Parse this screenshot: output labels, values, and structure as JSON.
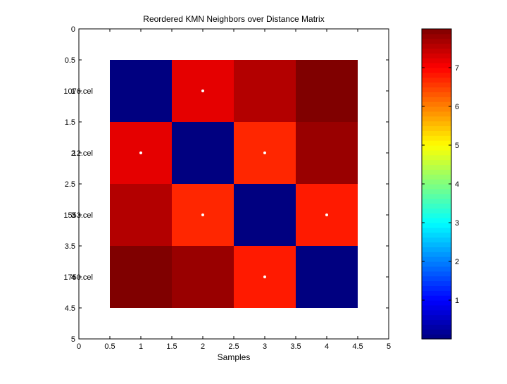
{
  "chart_data": {
    "type": "heatmap",
    "title": "Reordered KMN Neighbors over Distance Matrix",
    "xlabel": "Samples",
    "ylabel": "",
    "xlim": [
      0,
      5
    ],
    "ylim": [
      5,
      0
    ],
    "x_ticks": [
      "0",
      "0.5",
      "1",
      "1.5",
      "2",
      "2.5",
      "3",
      "3.5",
      "4",
      "4.5",
      "5"
    ],
    "y_ticks": [
      "0",
      "0.5",
      "1",
      "1.5",
      "2",
      "2.5",
      "3",
      "3.5",
      "4",
      "4.5",
      "5"
    ],
    "row_labels": [
      "1076.cel",
      "12.cel",
      "1553.cel",
      "1750.cel"
    ],
    "row_labels_overlap": [
      "1",
      "2",
      "3",
      "4"
    ],
    "colormap": "jet",
    "clim": [
      0,
      8
    ],
    "colorbar_ticks": [
      "1",
      "2",
      "3",
      "4",
      "5",
      "6",
      "7"
    ],
    "values": [
      [
        0.0,
        7.2,
        7.6,
        8.0
      ],
      [
        7.2,
        0.0,
        6.7,
        7.8
      ],
      [
        7.6,
        6.7,
        0.0,
        6.8
      ],
      [
        8.0,
        7.8,
        6.8,
        0.0
      ]
    ],
    "markers": [
      {
        "row": 1,
        "col": 2
      },
      {
        "row": 2,
        "col": 1
      },
      {
        "row": 2,
        "col": 3
      },
      {
        "row": 3,
        "col": 2
      },
      {
        "row": 3,
        "col": 4
      },
      {
        "row": 4,
        "col": 3
      }
    ]
  }
}
